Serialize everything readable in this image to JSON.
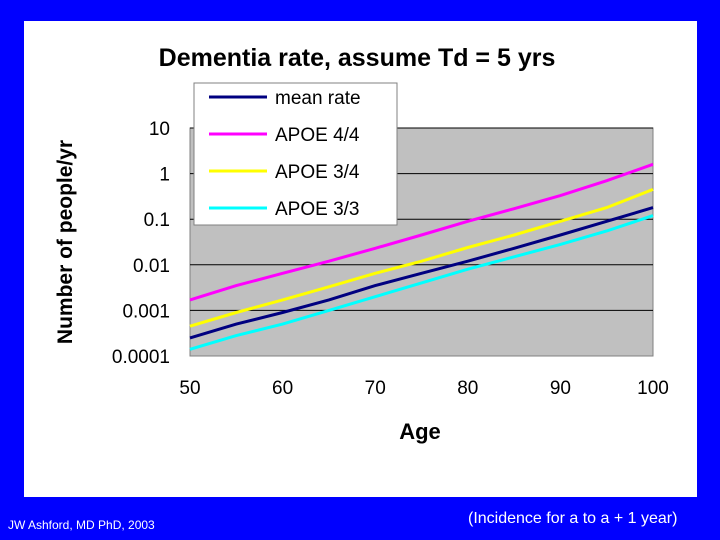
{
  "colors": {
    "background": "#0000ff",
    "plot_area": "#c0c0c0",
    "footer_text": "#ffffff"
  },
  "footer": {
    "author": "JW Ashford, MD PhD, 2003",
    "note": "(Incidence for a to a + 1 year)"
  },
  "chart_data": {
    "type": "line",
    "title": "Dementia rate, assume Td = 5 yrs",
    "xlabel": "Age",
    "ylabel": "Number of people/yr",
    "y_scale": "log",
    "xlim": [
      50,
      100
    ],
    "ylim": [
      0.0001,
      10
    ],
    "x_ticks": [
      50,
      60,
      70,
      80,
      90,
      100
    ],
    "y_ticks": [
      {
        "value": 10,
        "label": "10"
      },
      {
        "value": 1,
        "label": "1"
      },
      {
        "value": 0.1,
        "label": "0.1"
      },
      {
        "value": 0.01,
        "label": "0.01"
      },
      {
        "value": 0.001,
        "label": "0.001"
      },
      {
        "value": 0.0001,
        "label": "0.0001"
      }
    ],
    "grid": true,
    "legend_position": "top-left",
    "x": [
      50,
      55,
      60,
      65,
      70,
      75,
      80,
      85,
      90,
      95,
      100
    ],
    "series": [
      {
        "name": "mean rate",
        "color": "#000080",
        "values": [
          0.00025,
          0.0005,
          0.0009,
          0.0017,
          0.0035,
          0.0065,
          0.012,
          0.023,
          0.045,
          0.09,
          0.18
        ]
      },
      {
        "name": "APOE 4/4",
        "color": "#ff00ff",
        "values": [
          0.0017,
          0.0035,
          0.0065,
          0.012,
          0.023,
          0.045,
          0.09,
          0.17,
          0.33,
          0.7,
          1.6
        ]
      },
      {
        "name": "APOE 3/4",
        "color": "#ffff00",
        "values": [
          0.00045,
          0.0009,
          0.0017,
          0.0033,
          0.0065,
          0.012,
          0.024,
          0.045,
          0.09,
          0.18,
          0.45
        ]
      },
      {
        "name": "APOE 3/3",
        "color": "#00ffff",
        "values": [
          0.00014,
          0.00028,
          0.0005,
          0.001,
          0.002,
          0.004,
          0.008,
          0.015,
          0.028,
          0.055,
          0.12
        ]
      }
    ]
  }
}
